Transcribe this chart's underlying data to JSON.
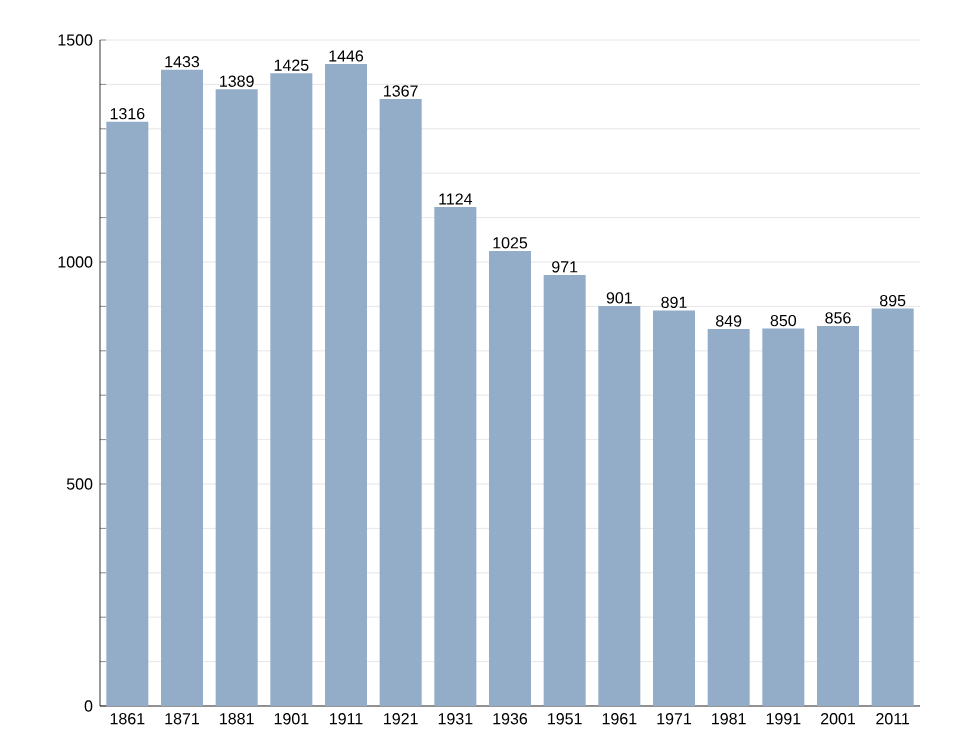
{
  "chart_data": {
    "type": "bar",
    "categories": [
      "1861",
      "1871",
      "1881",
      "1901",
      "1911",
      "1921",
      "1931",
      "1936",
      "1951",
      "1961",
      "1971",
      "1981",
      "1991",
      "2001",
      "2011"
    ],
    "values": [
      1316,
      1433,
      1389,
      1425,
      1446,
      1367,
      1124,
      1025,
      971,
      901,
      891,
      849,
      850,
      856,
      895
    ],
    "color": "#93acc8",
    "ylim": [
      0,
      1500
    ],
    "yticks": [
      0,
      {
        "value": 100,
        "label": null
      },
      {
        "value": 200,
        "label": null
      },
      {
        "value": 300,
        "label": null
      },
      {
        "value": 400,
        "label": null
      },
      500,
      {
        "value": 600,
        "label": null
      },
      {
        "value": 700,
        "label": null
      },
      {
        "value": 800,
        "label": null
      },
      {
        "value": 900,
        "label": null
      },
      1000,
      {
        "value": 1100,
        "label": null
      },
      {
        "value": 1200,
        "label": null
      },
      {
        "value": 1300,
        "label": null
      },
      {
        "value": 1400,
        "label": null
      },
      1500
    ],
    "grid": "y",
    "data_labels": true
  }
}
